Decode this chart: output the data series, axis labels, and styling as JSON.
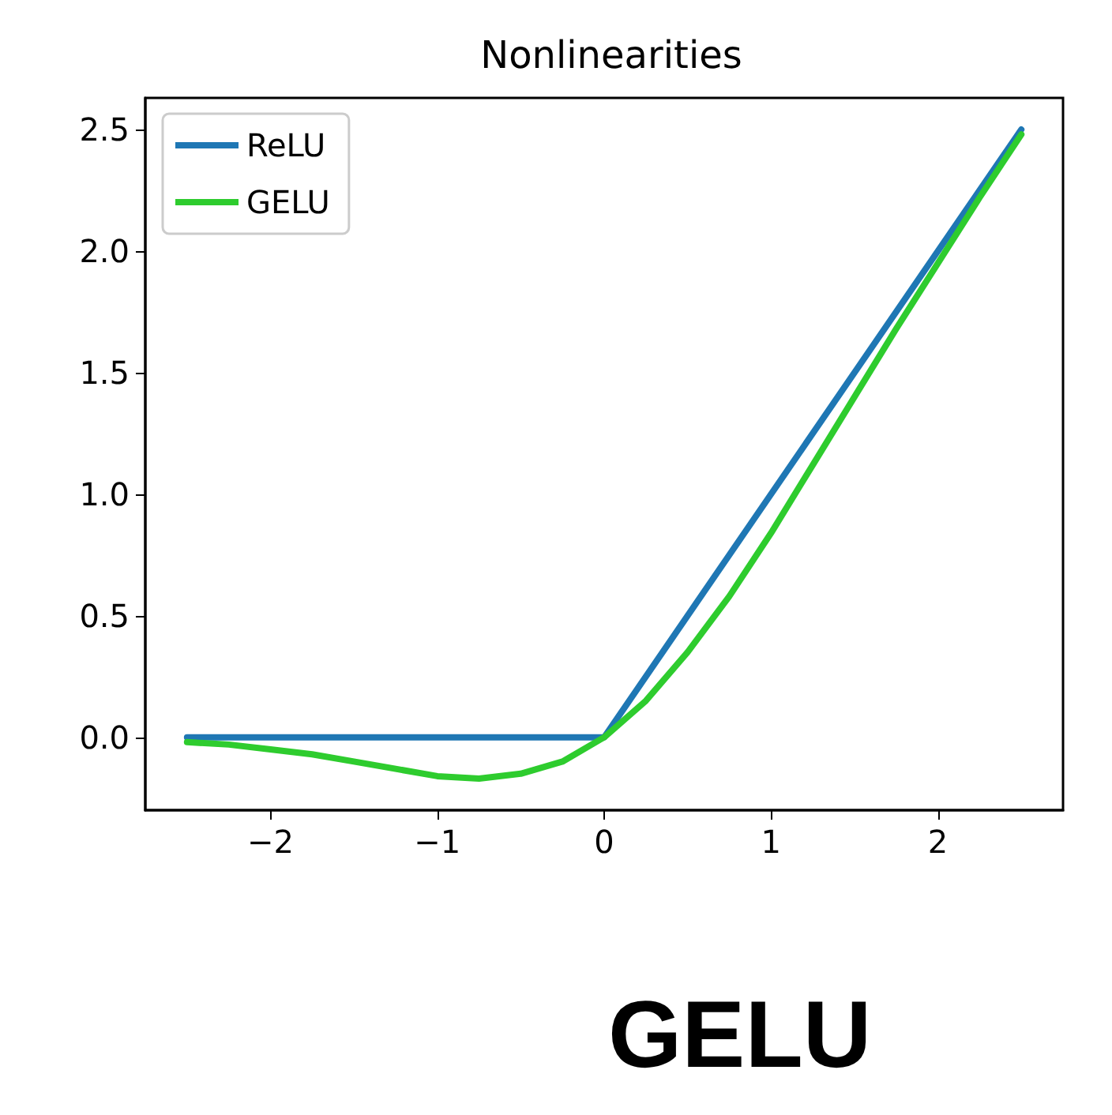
{
  "chart_data": {
    "type": "line",
    "title": "Nonlinearities",
    "series": [
      {
        "name": "ReLU",
        "color": "#1f77b4",
        "x": [
          -2.5,
          0,
          2.5
        ],
        "values": [
          0,
          0,
          2.5
        ]
      },
      {
        "name": "GELU",
        "color": "#2ecc2e",
        "x": [
          -2.5,
          -2.25,
          -2,
          -1.75,
          -1.5,
          -1.25,
          -1,
          -0.75,
          -0.5,
          -0.25,
          0,
          0.25,
          0.5,
          0.75,
          1,
          1.25,
          1.5,
          1.75,
          2,
          2.25,
          2.5
        ],
        "values": [
          -0.02,
          -0.03,
          -0.05,
          -0.07,
          -0.1,
          -0.13,
          -0.16,
          -0.17,
          -0.15,
          -0.1,
          0,
          0.15,
          0.35,
          0.58,
          0.84,
          1.12,
          1.4,
          1.68,
          1.95,
          2.22,
          2.48
        ]
      }
    ],
    "xlim": [
      -2.75,
      2.75
    ],
    "xticks": [
      {
        "value": -2,
        "label": "−2"
      },
      {
        "value": -1,
        "label": "−1"
      },
      0,
      1,
      2
    ],
    "ylim": [
      -0.3,
      2.63
    ],
    "yticks": [
      {
        "value": 0,
        "label": "0.0"
      },
      0.5,
      {
        "value": 1,
        "label": "1.0"
      },
      1.5,
      {
        "value": 2,
        "label": "2.0"
      },
      2.5
    ],
    "legend": "top left",
    "grid": false,
    "marker": "none",
    "line_style": "solid",
    "annotations": [
      "GELU"
    ]
  }
}
